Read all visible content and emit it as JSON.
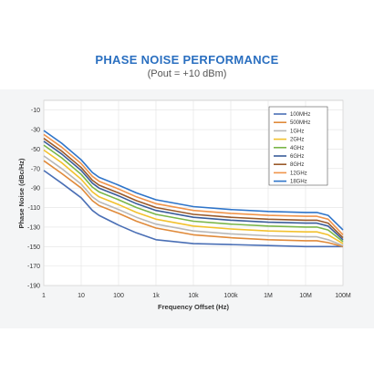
{
  "header": {
    "title": "PHASE NOISE PERFORMANCE",
    "subtitle": "(Pout = +10 dBm)"
  },
  "chart_data": {
    "type": "line",
    "x_scale": "log",
    "xlabel": "Frequency Offset (Hz)",
    "ylabel": "Phase Noise (dBc/Hz)",
    "xlim": [
      1,
      100000000
    ],
    "ylim": [
      -190,
      0
    ],
    "x_ticks": [
      {
        "value": 1,
        "label": "1"
      },
      {
        "value": 10,
        "label": "10"
      },
      {
        "value": 100,
        "label": "100"
      },
      {
        "value": 1000,
        "label": "1k"
      },
      {
        "value": 10000,
        "label": "10k"
      },
      {
        "value": 100000,
        "label": "100k"
      },
      {
        "value": 1000000,
        "label": "1M"
      },
      {
        "value": 10000000,
        "label": "10M"
      },
      {
        "value": 100000000,
        "label": "100M"
      }
    ],
    "y_ticks": [
      {
        "value": -10,
        "label": "-10"
      },
      {
        "value": -30,
        "label": "-30"
      },
      {
        "value": -50,
        "label": "-50"
      },
      {
        "value": -70,
        "label": "-70"
      },
      {
        "value": -90,
        "label": "-90"
      },
      {
        "value": -110,
        "label": "-110"
      },
      {
        "value": -130,
        "label": "-130"
      },
      {
        "value": -150,
        "label": "-150"
      },
      {
        "value": -170,
        "label": "-170"
      },
      {
        "value": -190,
        "label": "-190"
      }
    ],
    "grid": true,
    "legend_position": "top-right",
    "x": [
      1,
      3,
      10,
      20,
      30,
      100,
      300,
      1000,
      10000,
      100000,
      1000000,
      10000000,
      20000000,
      40000000,
      100000000
    ],
    "series": [
      {
        "name": "100MHz",
        "color": "#4a6fb5",
        "values": [
          -72,
          -85,
          -100,
          -113,
          -118,
          -128,
          -136,
          -143,
          -147,
          -148,
          -149,
          -150,
          -150,
          -150,
          -150
        ]
      },
      {
        "name": "500MHz",
        "color": "#e08a3a",
        "values": [
          -62,
          -75,
          -90,
          -103,
          -108,
          -116,
          -124,
          -131,
          -138,
          -141,
          -143,
          -144,
          -144,
          -146,
          -150
        ]
      },
      {
        "name": "1GHz",
        "color": "#b8b8b8",
        "values": [
          -57,
          -70,
          -86,
          -99,
          -104,
          -112,
          -120,
          -127,
          -134,
          -137,
          -139,
          -140,
          -140,
          -143,
          -149
        ]
      },
      {
        "name": "2GHz",
        "color": "#f2c12e",
        "values": [
          -51,
          -64,
          -81,
          -94,
          -99,
          -107,
          -115,
          -122,
          -129,
          -132,
          -134,
          -135,
          -135,
          -138,
          -147
        ]
      },
      {
        "name": "4GHz",
        "color": "#7ab648",
        "values": [
          -46,
          -59,
          -76,
          -89,
          -94,
          -102,
          -110,
          -117,
          -124,
          -127,
          -129,
          -130,
          -130,
          -133,
          -145
        ]
      },
      {
        "name": "6GHz",
        "color": "#3a5d99",
        "values": [
          -42,
          -55,
          -72,
          -85,
          -90,
          -98,
          -106,
          -113,
          -120,
          -123,
          -125,
          -126,
          -126,
          -129,
          -143
        ]
      },
      {
        "name": "8GHz",
        "color": "#9a5a2a",
        "values": [
          -39,
          -52,
          -69,
          -82,
          -87,
          -95,
          -103,
          -110,
          -117,
          -120,
          -122,
          -123,
          -123,
          -126,
          -141
        ]
      },
      {
        "name": "12GHz",
        "color": "#f0944a",
        "values": [
          -35,
          -48,
          -65,
          -78,
          -83,
          -91,
          -99,
          -106,
          -113,
          -116,
          -118,
          -119,
          -119,
          -122,
          -138
        ]
      },
      {
        "name": "18GHz",
        "color": "#2e74c9",
        "values": [
          -31,
          -44,
          -61,
          -74,
          -79,
          -87,
          -95,
          -102,
          -109,
          -112,
          -114,
          -115,
          -115,
          -118,
          -133
        ]
      }
    ]
  }
}
